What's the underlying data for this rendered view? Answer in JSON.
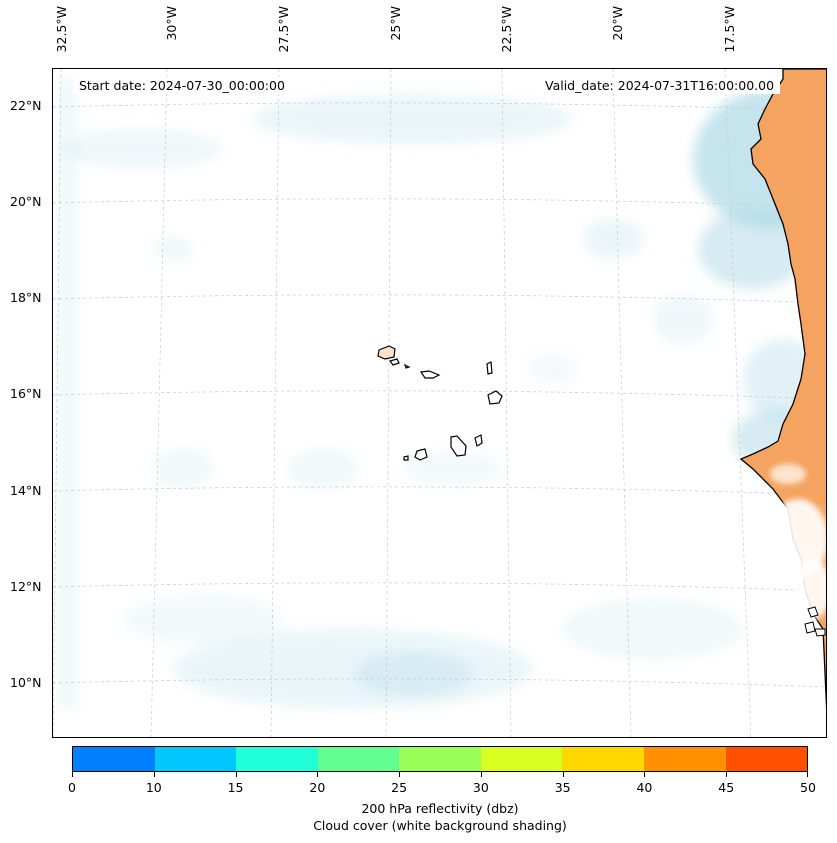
{
  "map": {
    "start_date": "Start date: 2024-07-30_00:00:00",
    "valid_date": "Valid_date: 2024-07-31T16:00:00.00",
    "lon_labels": [
      "32.5°W",
      "30°W",
      "27.5°W",
      "25°W",
      "22.5°W",
      "20°W",
      "17.5°W"
    ],
    "lat_labels": [
      "22°N",
      "20°N",
      "18°N",
      "16°N",
      "14°N",
      "12°N",
      "10°N"
    ],
    "colors": {
      "land": "#f4a460",
      "cloud_shading": "#add8e6",
      "coastline": "#000000",
      "gridline": "#c8c8c8"
    }
  },
  "colorbar": {
    "ticks": [
      "0",
      "10",
      "15",
      "20",
      "25",
      "30",
      "35",
      "40",
      "45",
      "50"
    ],
    "colors": [
      "#0080ff",
      "#00c8ff",
      "#20ffd8",
      "#60ff90",
      "#98ff58",
      "#d8ff20",
      "#ffd800",
      "#ff9000",
      "#ff5000"
    ],
    "label_line1": "200 hPa reflectivity (dbz)",
    "label_line2": "Cloud cover (white background shading)"
  }
}
